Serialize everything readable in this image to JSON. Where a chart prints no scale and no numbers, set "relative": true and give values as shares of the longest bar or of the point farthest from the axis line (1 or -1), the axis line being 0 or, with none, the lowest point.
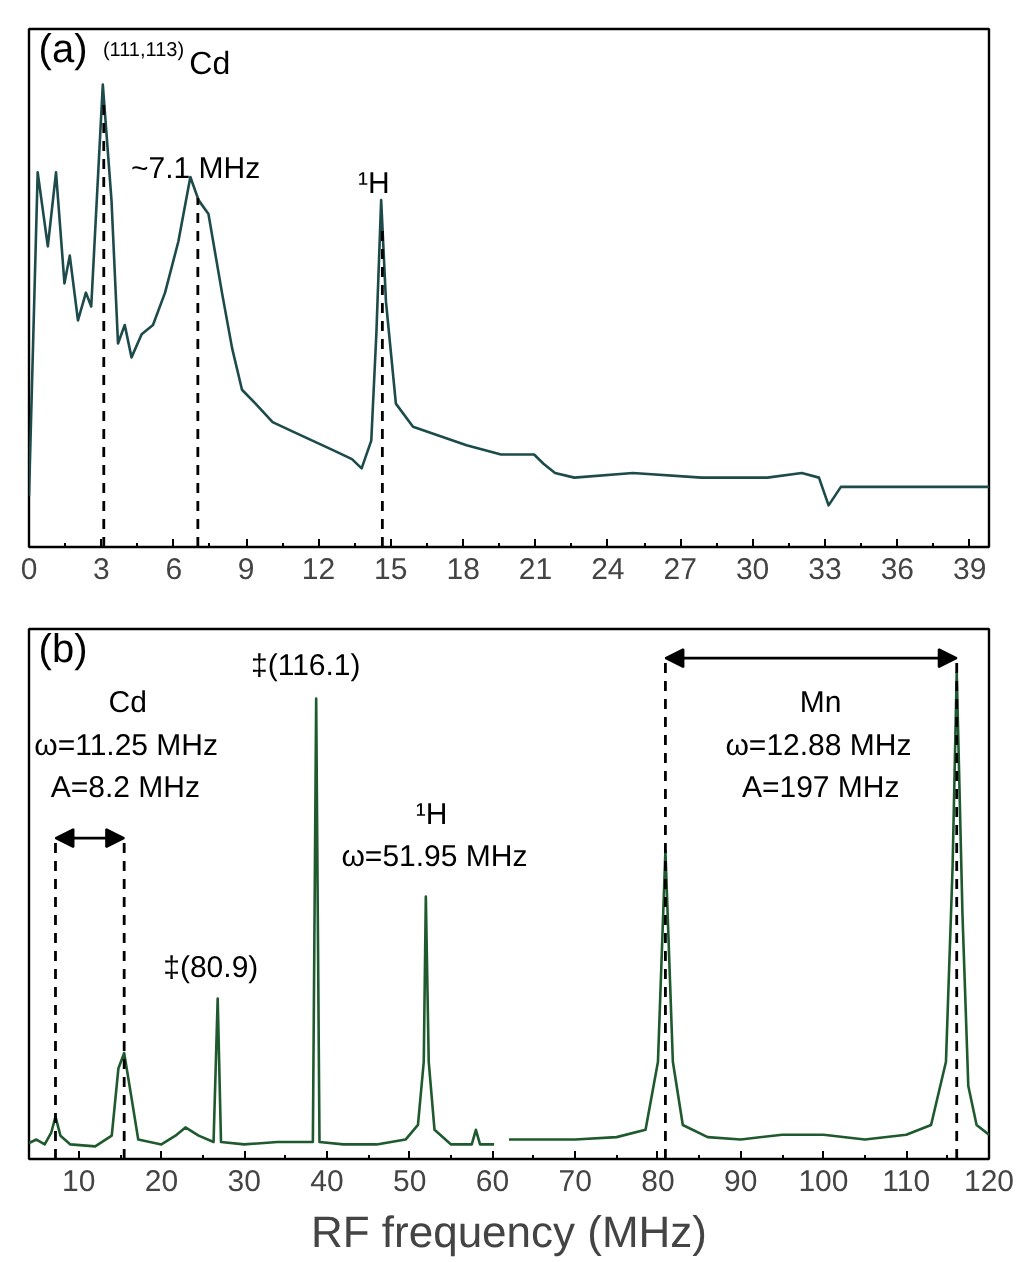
{
  "chart_data": [
    {
      "type": "line",
      "relative": true,
      "tick_labels": "x",
      "xlim": [
        0,
        39.8
      ],
      "xticks": [
        0,
        3,
        6,
        9,
        12,
        15,
        18,
        21,
        24,
        27,
        30,
        33,
        36,
        39
      ],
      "annotations": [
        "(a)",
        "$^{(111,113)}$Cd",
        "~7.1 MHz",
        "¹H"
      ],
      "ref_lines": [
        {
          "axis": "x",
          "value": 3.1,
          "line_style": "dashed"
        },
        {
          "axis": "x",
          "value": 7.0,
          "line_style": "dashed"
        },
        {
          "axis": "x",
          "value": 14.65,
          "line_style": "dashed"
        }
      ],
      "series": [
        {
          "color": "#1d4a4a",
          "x": [
            0,
            0.36,
            0.78,
            1.12,
            1.47,
            1.69,
            2.03,
            2.36,
            2.58,
            3.06,
            3.42,
            3.69,
            3.97,
            4.25,
            4.67,
            5.14,
            5.64,
            6.19,
            6.69,
            7.03,
            7.44,
            8.0,
            8.42,
            8.83,
            9.39,
            10.1,
            10.92,
            11.75,
            12.58,
            13.39,
            13.79,
            14.19,
            14.4,
            14.6,
            14.8,
            15.21,
            15.92,
            17.03,
            18.14,
            19.57,
            20.94,
            21.33,
            21.81,
            22.61,
            25.04,
            27.88,
            30.61,
            32.04,
            32.75,
            33.15,
            33.66,
            36.19,
            37.62,
            39.8
          ],
          "values": [
            0.11,
            0.81,
            0.65,
            0.81,
            0.57,
            0.63,
            0.49,
            0.55,
            0.52,
            1.0,
            0.75,
            0.44,
            0.48,
            0.41,
            0.46,
            0.48,
            0.55,
            0.66,
            0.8,
            0.75,
            0.72,
            0.55,
            0.43,
            0.34,
            0.31,
            0.27,
            0.25,
            0.23,
            0.21,
            0.19,
            0.17,
            0.23,
            0.46,
            0.75,
            0.53,
            0.31,
            0.26,
            0.24,
            0.22,
            0.2,
            0.2,
            0.18,
            0.16,
            0.15,
            0.16,
            0.15,
            0.15,
            0.16,
            0.15,
            0.09,
            0.13,
            0.13,
            0.13,
            0.13
          ]
        }
      ]
    },
    {
      "type": "line",
      "relative": true,
      "tick_labels": "x",
      "xlabel": "RF frequency (MHz)",
      "xlim": [
        4,
        120
      ],
      "xticks": [
        10,
        20,
        30,
        40,
        50,
        60,
        70,
        80,
        90,
        100,
        110,
        120
      ],
      "annotations": [
        "(b)",
        "Cd",
        "ω=11.25 MHz",
        "A=8.2 MHz",
        "‡(116.1)",
        "‡(80.9)",
        "¹H",
        "ω=51.95 MHz",
        "Mn",
        "ω=12.88 MHz",
        "A=197 MHz"
      ],
      "ref_lines": [
        {
          "axis": "x",
          "value": 7.2,
          "line_style": "dashed"
        },
        {
          "axis": "x",
          "value": 15.5,
          "line_style": "dashed"
        },
        {
          "axis": "x",
          "value": 80.9,
          "line_style": "dashed"
        },
        {
          "axis": "x",
          "value": 116.1,
          "line_style": "dashed"
        }
      ],
      "series": [
        {
          "color": "#1e5a2e",
          "x": [
            4.0,
            4.9,
            5.9,
            6.7,
            7.2,
            7.8,
            9,
            12,
            14,
            14.8,
            15.5,
            16.3,
            17.2,
            20,
            21.7,
            22.9,
            24.5,
            26.3,
            26.8,
            27.2,
            30,
            34,
            38.3,
            38.7,
            39.1,
            42,
            46,
            49.5,
            51,
            51.7,
            51.95,
            52.3,
            53,
            55,
            57.5,
            58,
            58.5,
            60.2,
            61,
            62,
            65,
            70,
            75,
            78.5,
            80,
            80.9,
            81.8,
            83,
            86,
            90,
            95,
            100,
            105,
            110,
            113,
            114.8,
            115.6,
            116.1,
            116.8,
            117.5,
            118.5,
            120
          ],
          "values": [
            0.033,
            0.04,
            0.03,
            0.055,
            0.087,
            0.048,
            0.03,
            0.026,
            0.048,
            0.186,
            0.218,
            0.135,
            0.04,
            0.03,
            0.048,
            0.065,
            0.048,
            0.035,
            0.33,
            0.035,
            0.03,
            0.035,
            0.035,
            0.947,
            0.035,
            0.03,
            0.03,
            0.04,
            0.07,
            0.2,
            0.54,
            0.2,
            0.06,
            0.03,
            0.03,
            0.06,
            0.03,
            0.03,
            null,
            0.04,
            0.04,
            0.04,
            0.045,
            0.06,
            0.2,
            0.634,
            0.2,
            0.07,
            0.045,
            0.04,
            0.05,
            0.05,
            0.04,
            0.05,
            0.07,
            0.2,
            0.6,
            1.0,
            0.5,
            0.15,
            0.07,
            0.05
          ]
        }
      ]
    }
  ]
}
